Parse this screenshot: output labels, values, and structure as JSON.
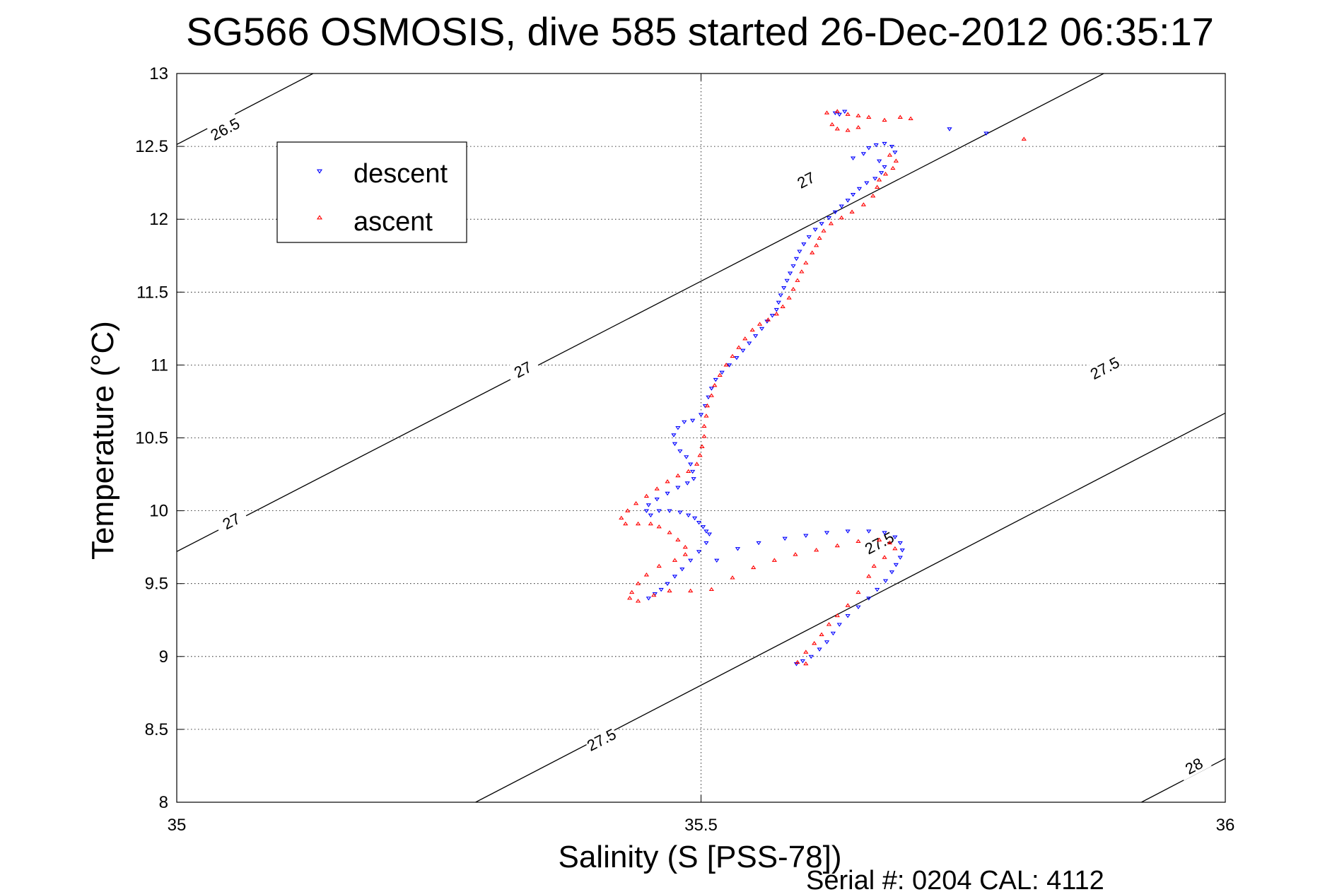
{
  "chart_data": {
    "type": "scatter",
    "title": "SG566 OSMOSIS, dive 585 started 26-Dec-2012 06:35:17",
    "xlabel": "Salinity (S [PSS-78])",
    "ylabel": "Temperature (°C)",
    "footer": "Serial #: 0204  CAL: 4112",
    "xlim": [
      35,
      36
    ],
    "ylim": [
      8,
      13
    ],
    "x_ticks": [
      35,
      35.5,
      36
    ],
    "x_tick_labels": [
      "35",
      "35.5",
      "36"
    ],
    "y_ticks": [
      8,
      8.5,
      9,
      9.5,
      10,
      10.5,
      11,
      11.5,
      12,
      12.5,
      13
    ],
    "y_tick_labels": [
      "8",
      "8.5",
      "9",
      "9.5",
      "10",
      "10.5",
      "11",
      "11.5",
      "12",
      "12.5",
      "13"
    ],
    "grid": true,
    "legend_position": "top-left",
    "series": [
      {
        "name": "descent",
        "color": "#0000ff",
        "marker": "triangle-down",
        "points": [
          [
            35.637,
            12.74
          ],
          [
            35.632,
            12.72
          ],
          [
            35.628,
            12.73
          ],
          [
            35.66,
            12.49
          ],
          [
            35.667,
            12.51
          ],
          [
            35.675,
            12.52
          ],
          [
            35.682,
            12.5
          ],
          [
            35.685,
            12.46
          ],
          [
            35.655,
            12.45
          ],
          [
            35.645,
            12.42
          ],
          [
            35.67,
            12.4
          ],
          [
            35.675,
            12.36
          ],
          [
            35.672,
            12.32
          ],
          [
            35.666,
            12.28
          ],
          [
            35.658,
            12.25
          ],
          [
            35.651,
            12.21
          ],
          [
            35.645,
            12.17
          ],
          [
            35.64,
            12.13
          ],
          [
            35.634,
            12.09
          ],
          [
            35.628,
            12.05
          ],
          [
            35.622,
            12.01
          ],
          [
            35.615,
            11.97
          ],
          [
            35.609,
            11.93
          ],
          [
            35.603,
            11.88
          ],
          [
            35.598,
            11.83
          ],
          [
            35.594,
            11.78
          ],
          [
            35.591,
            11.73
          ],
          [
            35.588,
            11.68
          ],
          [
            35.585,
            11.63
          ],
          [
            35.582,
            11.58
          ],
          [
            35.579,
            11.53
          ],
          [
            35.576,
            11.48
          ],
          [
            35.574,
            11.43
          ],
          [
            35.572,
            11.38
          ],
          [
            35.568,
            11.34
          ],
          [
            35.563,
            11.3
          ],
          [
            35.558,
            11.25
          ],
          [
            35.552,
            11.2
          ],
          [
            35.546,
            11.15
          ],
          [
            35.54,
            11.1
          ],
          [
            35.534,
            11.05
          ],
          [
            35.527,
            11.0
          ],
          [
            35.52,
            10.95
          ],
          [
            35.514,
            10.9
          ],
          [
            35.51,
            10.84
          ],
          [
            35.507,
            10.78
          ],
          [
            35.504,
            10.72
          ],
          [
            35.5,
            10.66
          ],
          [
            35.492,
            10.62
          ],
          [
            35.484,
            10.61
          ],
          [
            35.478,
            10.57
          ],
          [
            35.474,
            10.52
          ],
          [
            35.475,
            10.46
          ],
          [
            35.48,
            10.41
          ],
          [
            35.486,
            10.37
          ],
          [
            35.49,
            10.32
          ],
          [
            35.492,
            10.27
          ],
          [
            35.493,
            10.22
          ],
          [
            35.487,
            10.19
          ],
          [
            35.478,
            10.16
          ],
          [
            35.468,
            10.12
          ],
          [
            35.458,
            10.08
          ],
          [
            35.45,
            10.04
          ],
          [
            35.448,
            10.0
          ],
          [
            35.452,
            9.97
          ],
          [
            35.46,
            10.0
          ],
          [
            35.47,
            10.0
          ],
          [
            35.48,
            9.99
          ],
          [
            35.488,
            9.97
          ],
          [
            35.494,
            9.95
          ],
          [
            35.498,
            9.92
          ],
          [
            35.502,
            9.89
          ],
          [
            35.505,
            9.86
          ],
          [
            35.508,
            9.84
          ],
          [
            35.505,
            9.78
          ],
          [
            35.498,
            9.72
          ],
          [
            35.49,
            9.66
          ],
          [
            35.482,
            9.6
          ],
          [
            35.475,
            9.55
          ],
          [
            35.468,
            9.5
          ],
          [
            35.462,
            9.46
          ],
          [
            35.456,
            9.43
          ],
          [
            35.45,
            9.4
          ],
          [
            35.515,
            9.66
          ],
          [
            35.535,
            9.74
          ],
          [
            35.555,
            9.78
          ],
          [
            35.58,
            9.81
          ],
          [
            35.6,
            9.83
          ],
          [
            35.62,
            9.85
          ],
          [
            35.64,
            9.86
          ],
          [
            35.66,
            9.86
          ],
          [
            35.675,
            9.85
          ],
          [
            35.685,
            9.82
          ],
          [
            35.69,
            9.78
          ],
          [
            35.692,
            9.73
          ],
          [
            35.69,
            9.68
          ],
          [
            35.686,
            9.63
          ],
          [
            35.682,
            9.58
          ],
          [
            35.676,
            9.52
          ],
          [
            35.668,
            9.46
          ],
          [
            35.66,
            9.4
          ],
          [
            35.65,
            9.34
          ],
          [
            35.64,
            9.28
          ],
          [
            35.632,
            9.22
          ],
          [
            35.626,
            9.16
          ],
          [
            35.62,
            9.1
          ],
          [
            35.613,
            9.05
          ],
          [
            35.605,
            9.0
          ],
          [
            35.597,
            8.97
          ],
          [
            35.591,
            8.95
          ],
          [
            35.737,
            12.62
          ],
          [
            35.772,
            12.59
          ]
        ]
      },
      {
        "name": "ascent",
        "color": "#ff0000",
        "marker": "triangle-up",
        "points": [
          [
            35.62,
            12.73
          ],
          [
            35.63,
            12.74
          ],
          [
            35.64,
            12.72
          ],
          [
            35.65,
            12.71
          ],
          [
            35.66,
            12.7
          ],
          [
            35.675,
            12.68
          ],
          [
            35.69,
            12.7
          ],
          [
            35.7,
            12.69
          ],
          [
            35.625,
            12.65
          ],
          [
            35.63,
            12.62
          ],
          [
            35.64,
            12.61
          ],
          [
            35.65,
            12.63
          ],
          [
            35.68,
            12.44
          ],
          [
            35.686,
            12.4
          ],
          [
            35.683,
            12.35
          ],
          [
            35.676,
            12.31
          ],
          [
            35.67,
            12.27
          ],
          [
            35.668,
            12.22
          ],
          [
            35.664,
            12.16
          ],
          [
            35.655,
            12.1
          ],
          [
            35.644,
            12.05
          ],
          [
            35.634,
            12.01
          ],
          [
            35.624,
            11.97
          ],
          [
            35.617,
            11.92
          ],
          [
            35.613,
            11.87
          ],
          [
            35.61,
            11.82
          ],
          [
            35.606,
            11.77
          ],
          [
            35.6,
            11.7
          ],
          [
            35.596,
            11.64
          ],
          [
            35.592,
            11.58
          ],
          [
            35.588,
            11.52
          ],
          [
            35.584,
            11.46
          ],
          [
            35.578,
            11.4
          ],
          [
            35.572,
            11.35
          ],
          [
            35.564,
            11.31
          ],
          [
            35.556,
            11.28
          ],
          [
            35.549,
            11.24
          ],
          [
            35.542,
            11.18
          ],
          [
            35.536,
            11.12
          ],
          [
            35.53,
            11.06
          ],
          [
            35.524,
            11.0
          ],
          [
            35.518,
            10.93
          ],
          [
            35.513,
            10.86
          ],
          [
            35.51,
            10.79
          ],
          [
            35.506,
            10.72
          ],
          [
            35.505,
            10.65
          ],
          [
            35.503,
            10.58
          ],
          [
            35.503,
            10.51
          ],
          [
            35.501,
            10.44
          ],
          [
            35.499,
            10.38
          ],
          [
            35.496,
            10.32
          ],
          [
            35.488,
            10.27
          ],
          [
            35.478,
            10.24
          ],
          [
            35.468,
            10.2
          ],
          [
            35.458,
            10.15
          ],
          [
            35.448,
            10.1
          ],
          [
            35.438,
            10.05
          ],
          [
            35.43,
            10.0
          ],
          [
            35.424,
            9.95
          ],
          [
            35.428,
            9.91
          ],
          [
            35.44,
            9.91
          ],
          [
            35.452,
            9.91
          ],
          [
            35.46,
            9.89
          ],
          [
            35.47,
            9.85
          ],
          [
            35.478,
            9.8
          ],
          [
            35.485,
            9.75
          ],
          [
            35.485,
            9.7
          ],
          [
            35.475,
            9.66
          ],
          [
            35.46,
            9.62
          ],
          [
            35.448,
            9.56
          ],
          [
            35.44,
            9.5
          ],
          [
            35.434,
            9.44
          ],
          [
            35.432,
            9.4
          ],
          [
            35.44,
            9.38
          ],
          [
            35.455,
            9.42
          ],
          [
            35.47,
            9.45
          ],
          [
            35.49,
            9.45
          ],
          [
            35.51,
            9.46
          ],
          [
            35.53,
            9.54
          ],
          [
            35.55,
            9.61
          ],
          [
            35.57,
            9.66
          ],
          [
            35.59,
            9.7
          ],
          [
            35.61,
            9.73
          ],
          [
            35.63,
            9.76
          ],
          [
            35.65,
            9.79
          ],
          [
            35.67,
            9.8
          ],
          [
            35.68,
            9.78
          ],
          [
            35.685,
            9.74
          ],
          [
            35.675,
            9.68
          ],
          [
            35.665,
            9.62
          ],
          [
            35.66,
            9.55
          ],
          [
            35.65,
            9.44
          ],
          [
            35.64,
            9.35
          ],
          [
            35.63,
            9.28
          ],
          [
            35.622,
            9.22
          ],
          [
            35.615,
            9.15
          ],
          [
            35.608,
            9.09
          ],
          [
            35.6,
            9.03
          ],
          [
            35.592,
            8.96
          ],
          [
            35.6,
            8.95
          ],
          [
            35.808,
            12.55
          ]
        ]
      }
    ],
    "contours": [
      {
        "label": "26.5",
        "points": [
          [
            35.0,
            12.513
          ],
          [
            35.13,
            13.0
          ]
        ],
        "label_at": [
          [
            35.046,
            12.62
          ]
        ]
      },
      {
        "label": "27",
        "points": [
          [
            35.0,
            9.72
          ],
          [
            36.0,
            13.43
          ]
        ],
        "label_at": [
          [
            35.052,
            9.93
          ],
          [
            35.33,
            10.97
          ],
          [
            35.6,
            12.27
          ]
        ]
      },
      {
        "label": "27.5",
        "points": [
          [
            35.285,
            8.0
          ],
          [
            36.0,
            10.67
          ]
        ],
        "label_at": [
          [
            35.405,
            8.43
          ],
          [
            35.67,
            9.78
          ],
          [
            35.885,
            10.98
          ]
        ]
      },
      {
        "label": "28",
        "points": [
          [
            35.92,
            8.0
          ],
          [
            36.0,
            8.3
          ]
        ],
        "label_at": [
          [
            35.97,
            8.25
          ]
        ]
      }
    ]
  }
}
